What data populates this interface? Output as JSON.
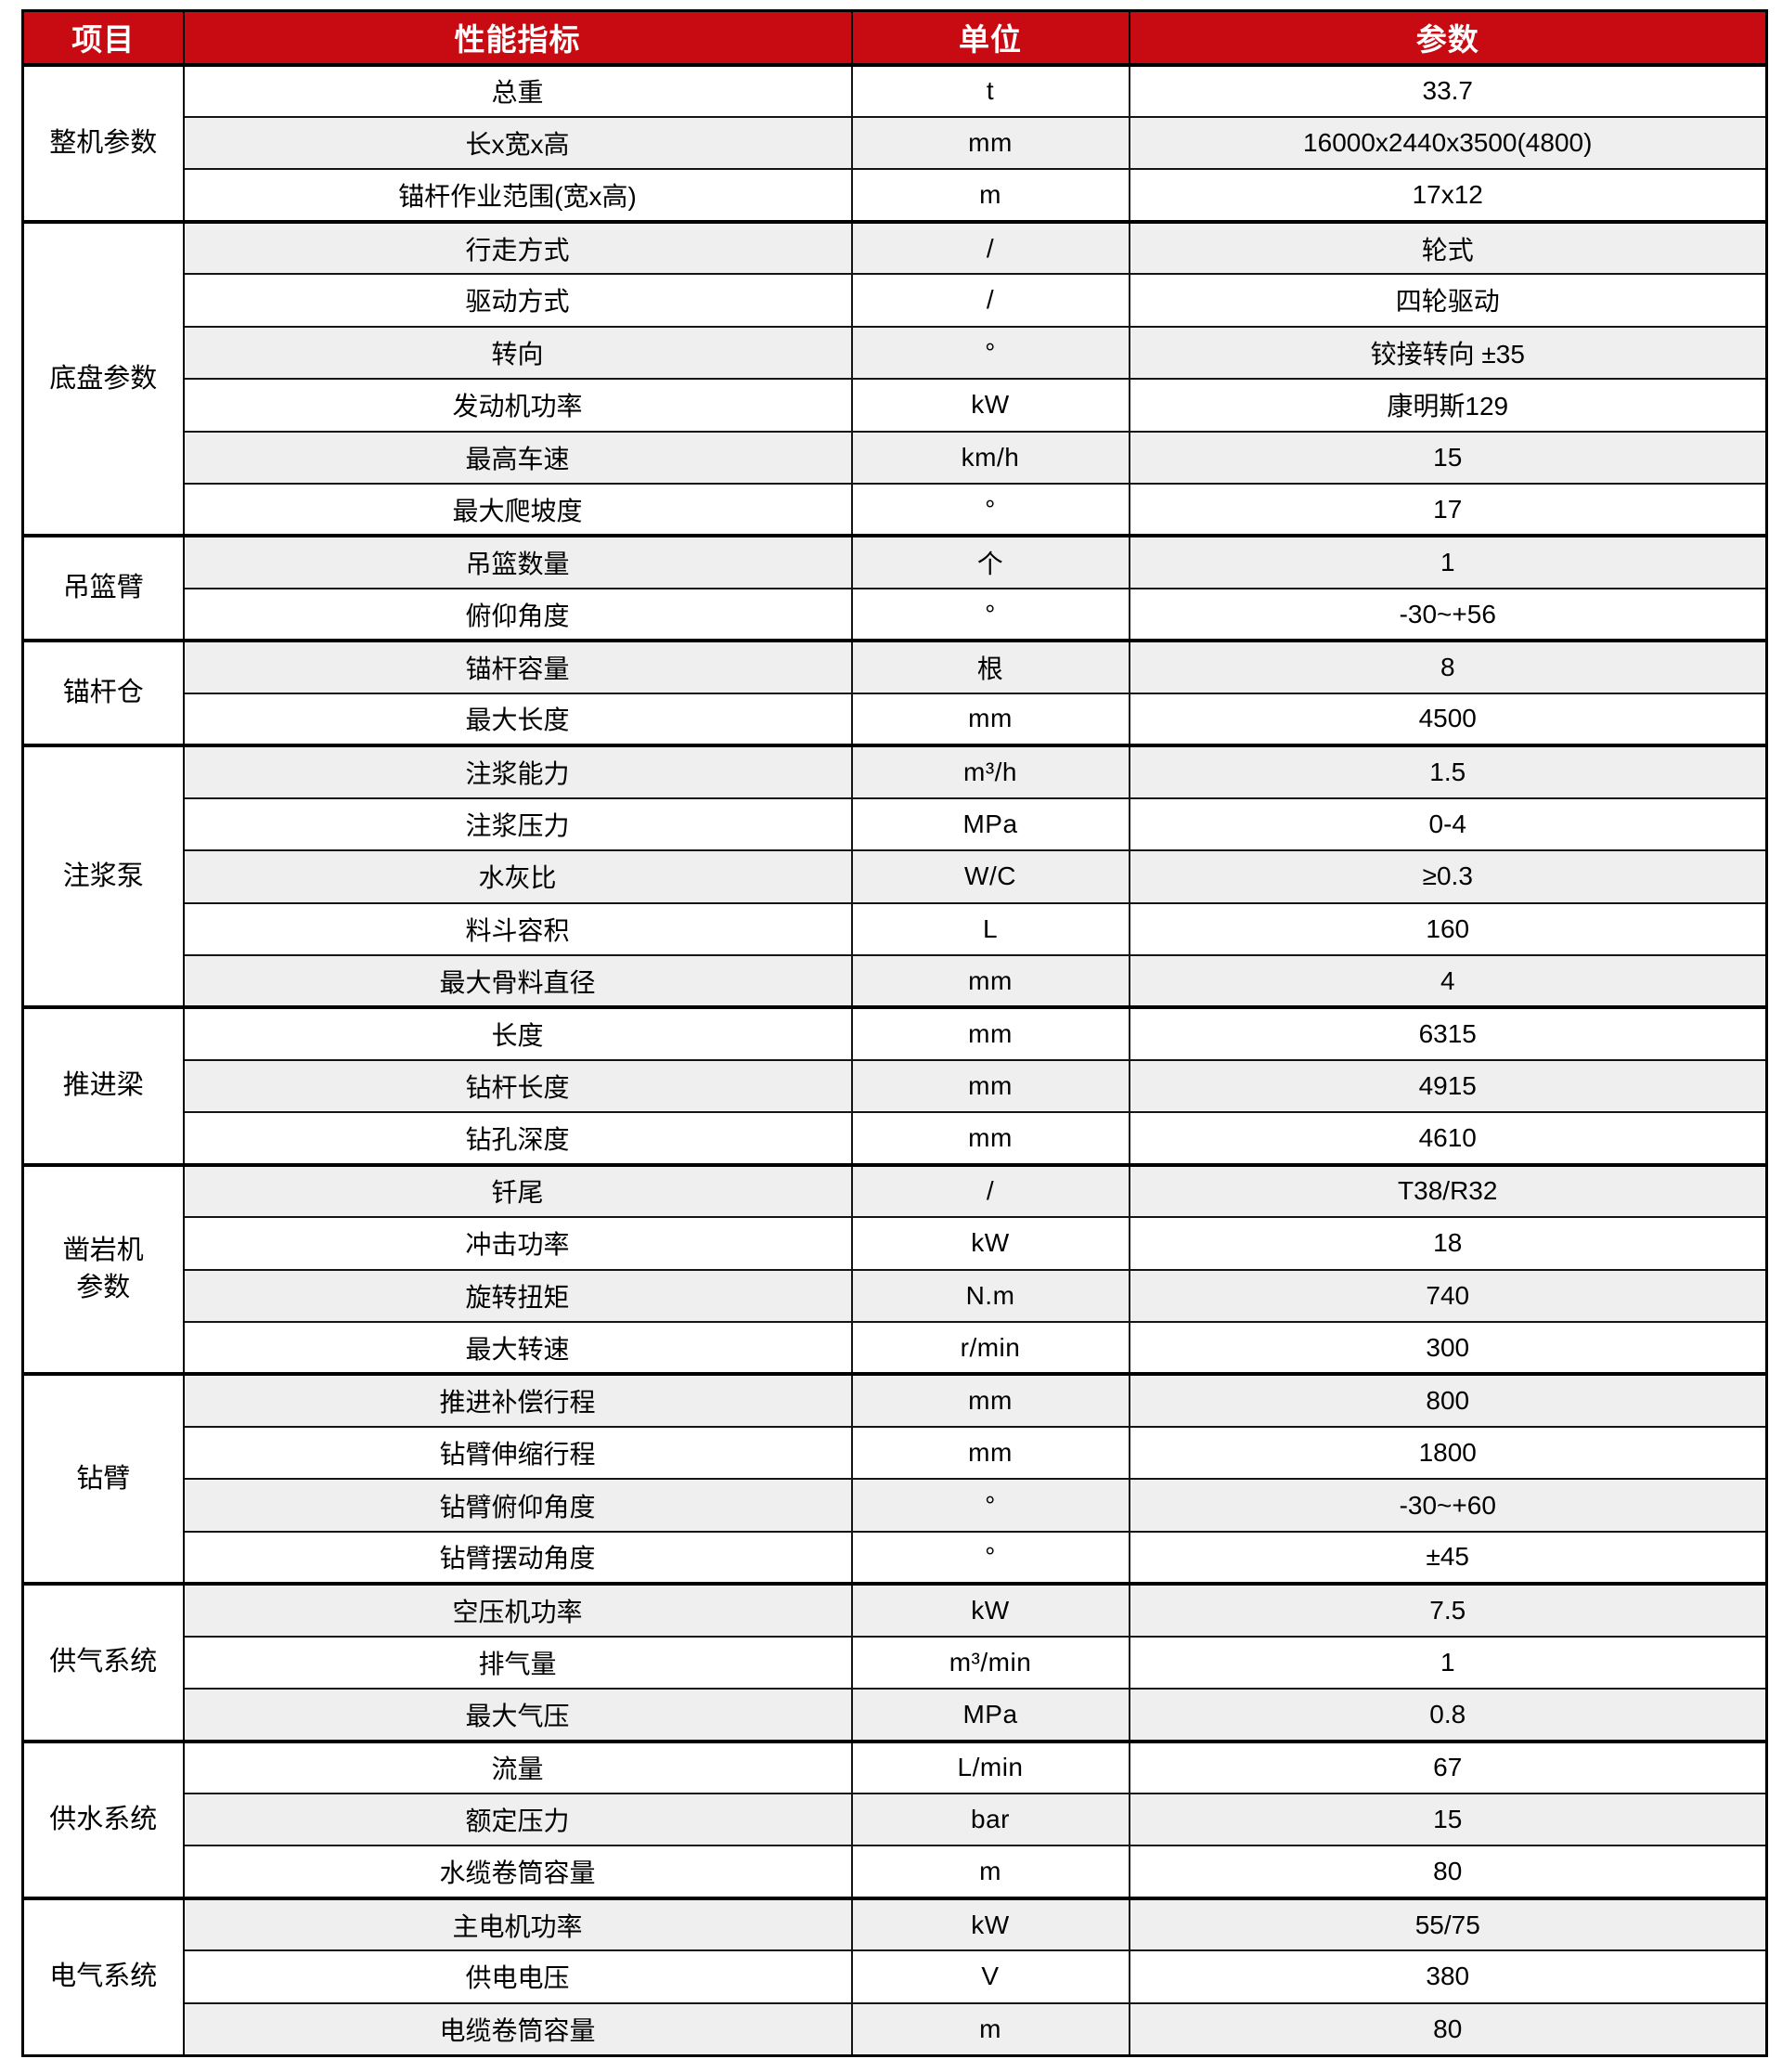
{
  "table": {
    "columns": [
      "项目",
      "性能指标",
      "单位",
      "参数"
    ],
    "colors": {
      "header_bg": "#c80a12",
      "header_text": "#ffffff",
      "row_bg": "#ffffff",
      "row_alt_bg": "#efefef",
      "border": "#000000"
    },
    "sections": [
      {
        "item": "整机参数",
        "rows": [
          [
            "总重",
            "t",
            "33.7"
          ],
          [
            "长x宽x高",
            "mm",
            "16000x2440x3500(4800)"
          ],
          [
            "锚杆作业范围(宽x高)",
            "m",
            "17x12"
          ]
        ]
      },
      {
        "item": "底盘参数",
        "rows": [
          [
            "行走方式",
            "/",
            "轮式"
          ],
          [
            "驱动方式",
            "/",
            "四轮驱动"
          ],
          [
            "转向",
            "°",
            "铰接转向 ±35"
          ],
          [
            "发动机功率",
            "kW",
            "康明斯129"
          ],
          [
            "最高车速",
            "km/h",
            "15"
          ],
          [
            "最大爬坡度",
            "°",
            "17"
          ]
        ]
      },
      {
        "item": "吊篮臂",
        "rows": [
          [
            "吊篮数量",
            "个",
            "1"
          ],
          [
            "俯仰角度",
            "°",
            "-30~+56"
          ]
        ]
      },
      {
        "item": "锚杆仓",
        "rows": [
          [
            "锚杆容量",
            "根",
            "8"
          ],
          [
            "最大长度",
            "mm",
            "4500"
          ]
        ]
      },
      {
        "item": "注浆泵",
        "rows": [
          [
            "注浆能力",
            "m³/h",
            "1.5"
          ],
          [
            "注浆压力",
            "MPa",
            "0-4"
          ],
          [
            "水灰比",
            "W/C",
            "≥0.3"
          ],
          [
            "料斗容积",
            "L",
            "160"
          ],
          [
            "最大骨料直径",
            "mm",
            "4"
          ]
        ]
      },
      {
        "item": "推进梁",
        "rows": [
          [
            "长度",
            "mm",
            "6315"
          ],
          [
            "钻杆长度",
            "mm",
            "4915"
          ],
          [
            "钻孔深度",
            "mm",
            "4610"
          ]
        ]
      },
      {
        "item": "凿岩机\n参数",
        "rows": [
          [
            "钎尾",
            "/",
            "T38/R32"
          ],
          [
            "冲击功率",
            "kW",
            "18"
          ],
          [
            "旋转扭矩",
            "N.m",
            "740"
          ],
          [
            "最大转速",
            "r/min",
            "300"
          ]
        ]
      },
      {
        "item": "钻臂",
        "rows": [
          [
            "推进补偿行程",
            "mm",
            "800"
          ],
          [
            "钻臂伸缩行程",
            "mm",
            "1800"
          ],
          [
            "钻臂俯仰角度",
            "°",
            "-30~+60"
          ],
          [
            "钻臂摆动角度",
            "°",
            "±45"
          ]
        ]
      },
      {
        "item": "供气系统",
        "rows": [
          [
            "空压机功率",
            "kW",
            "7.5"
          ],
          [
            "排气量",
            "m³/min",
            "1"
          ],
          [
            "最大气压",
            "MPa",
            "0.8"
          ]
        ]
      },
      {
        "item": "供水系统",
        "rows": [
          [
            "流量",
            "L/min",
            "67"
          ],
          [
            "额定压力",
            "bar",
            "15"
          ],
          [
            "水缆卷筒容量",
            "m",
            "80"
          ]
        ]
      },
      {
        "item": "电气系统",
        "rows": [
          [
            "主电机功率",
            "kW",
            "55/75"
          ],
          [
            "供电电压",
            "V",
            "380"
          ],
          [
            "电缆卷筒容量",
            "m",
            "80"
          ]
        ]
      }
    ]
  }
}
